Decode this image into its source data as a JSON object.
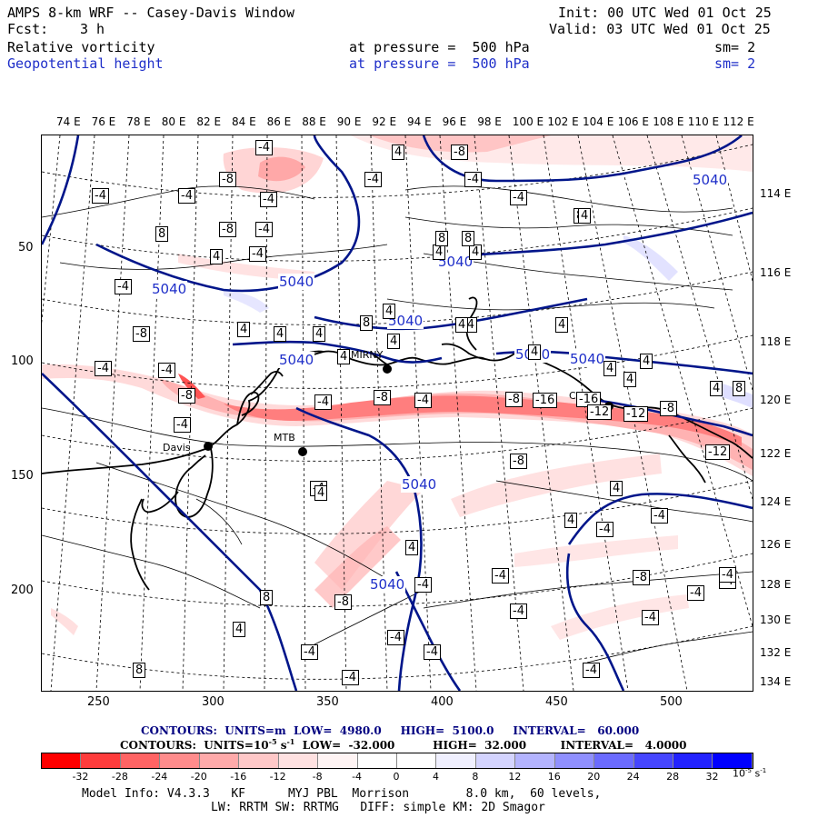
{
  "header": {
    "title": "AMPS 8-km WRF -- Casey-Davis Window",
    "forecast_label": "Fcst:",
    "forecast_value": "3 h",
    "init": "Init: 00 UTC Wed 01 Oct 25",
    "valid": "Valid: 03 UTC Wed 01 Oct 25",
    "field1_name": "Relative vorticity",
    "field1_level": "at pressure =  500 hPa",
    "field1_sm": "sm= 2",
    "field2_name": "Geopotential height",
    "field2_level": "at pressure =  500 hPa",
    "field2_sm": "sm= 2"
  },
  "axes": {
    "top_lon_labels": [
      "74 E",
      "76 E",
      "78 E",
      "80 E",
      "82 E",
      "84 E",
      "86 E",
      "88 E",
      "90 E",
      "92 E",
      "94 E",
      "96 E",
      "98 E",
      "100 E",
      "102 E",
      "104 E",
      "106 E",
      "108 E",
      "110 E",
      "112 E"
    ],
    "right_lon_labels": [
      "114 E",
      "116 E",
      "118 E",
      "120 E",
      "122 E",
      "124 E",
      "126 E",
      "128 E",
      "130 E",
      "132 E",
      "134 E"
    ],
    "left_grid_labels": [
      "50",
      "100",
      "150",
      "200"
    ],
    "bottom_grid_labels": [
      "250",
      "300",
      "350",
      "400",
      "450",
      "500"
    ]
  },
  "map": {
    "stations": [
      "Davis",
      "MIRNY",
      "Casey",
      "MTB"
    ],
    "height_contour_labels": [
      "5040",
      "5040",
      "5040",
      "5040",
      "5040",
      "5040",
      "5040",
      "5040",
      "5040",
      "5040"
    ],
    "vorticity_labels": [
      "-4",
      "-8",
      "-4",
      "-4",
      "-8",
      "-4",
      "-4",
      "-4",
      "-8",
      "-4",
      "-4",
      "-4",
      "-4",
      "-8",
      "-4",
      "-8",
      "-4",
      "-8",
      "-16",
      "-16",
      "-12",
      "-12",
      "-8",
      "-12",
      "-8",
      "-8",
      "-4",
      "-4",
      "-4",
      "-4",
      "-4",
      "-8",
      "-4",
      "-4",
      "-4",
      "-4",
      "-4",
      "-4",
      "-4",
      "-4",
      "-8",
      "-4",
      "-4",
      "-4",
      "-4",
      "-4",
      "-4"
    ],
    "positive_labels": [
      "4",
      "4",
      "4",
      "8",
      "8",
      "4",
      "4",
      "8",
      "8",
      "4",
      "4",
      "4",
      "4",
      "8",
      "4",
      "4",
      "4",
      "4",
      "4",
      "4",
      "4",
      "8",
      "4",
      "4",
      "4",
      "8",
      "4",
      "8",
      "4",
      "4",
      "4"
    ]
  },
  "contour_info": {
    "line1": "CONTOURS:  UNITS=m  LOW=  4980.0     HIGH=  5100.0     INTERVAL=   60.000",
    "line2_prefix": "CONTOURS:  UNITS=10",
    "line2_exp": "-5",
    "line2_unit": " s",
    "line2_unit_exp": "-1",
    "line2_suffix": "  LOW=  -32.000          HIGH=  32.000         INTERVAL=   4.0000"
  },
  "colorbar": {
    "colors": [
      "#ff0000",
      "#ff3c3c",
      "#ff6464",
      "#ff8c8c",
      "#ffaaaa",
      "#ffc8c8",
      "#ffe1e1",
      "#fff4f4",
      "#ffffff",
      "#ffffff",
      "#f0f0ff",
      "#d4d4ff",
      "#b4b4ff",
      "#9090ff",
      "#6b6bff",
      "#4646ff",
      "#2323ff",
      "#0000ff"
    ],
    "tick_labels": [
      "-32",
      "-28",
      "-24",
      "-20",
      "-16",
      "-12",
      "-8",
      "-4",
      "0",
      "4",
      "8",
      "12",
      "16",
      "20",
      "24",
      "28",
      "32"
    ],
    "unit_label": "10",
    "unit_exp": "-5",
    "unit_s": " s",
    "unit_s_exp": "-1"
  },
  "footer": {
    "line1": "Model Info: V4.3.3   KF      MYJ PBL  Morrison        8.0 km,  60 levels,",
    "line2": "LW: RRTM SW: RRTMG   DIFF: simple KM: 2D Smagor"
  }
}
